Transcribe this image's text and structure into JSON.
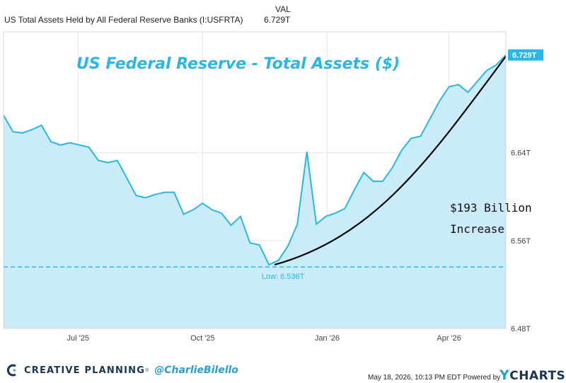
{
  "header": {
    "series_name": "US Total Assets Held by All Federal Reserve Banks (I:USFRTA)",
    "val_label": "VAL",
    "val_value": "6.729T"
  },
  "colors": {
    "line": "#29b6e8",
    "fill": "#c9ecf8",
    "title": "#29b6e8",
    "grid": "#e6e6e6",
    "trend": "#000000",
    "brand": "#1b3652"
  },
  "chart_data": {
    "type": "area",
    "title": "US Federal Reserve - Total Assets ($)",
    "y_unit": "trillions USD",
    "ylim": [
      6.48,
      6.75
    ],
    "y_ticks": [
      {
        "value": 6.48,
        "label": "6.48T"
      },
      {
        "value": 6.56,
        "label": "6.56T"
      },
      {
        "value": 6.64,
        "label": "6.64T"
      }
    ],
    "x_range": [
      "2025-05-07",
      "2026-05-13"
    ],
    "x_ticks": [
      {
        "date": "2025-07-01",
        "label": "Jul '25"
      },
      {
        "date": "2025-10-01",
        "label": "Oct '25"
      },
      {
        "date": "2026-01-01",
        "label": "Jan '26"
      },
      {
        "date": "2026-04-01",
        "label": "Apr '26"
      }
    ],
    "grid": true,
    "series": [
      {
        "x": [
          "2025-05-07",
          "2025-05-14",
          "2025-05-21",
          "2025-05-28",
          "2025-06-04",
          "2025-06-11",
          "2025-06-18",
          "2025-06-25",
          "2025-07-02",
          "2025-07-09",
          "2025-07-16",
          "2025-07-23",
          "2025-07-30",
          "2025-08-06",
          "2025-08-13",
          "2025-08-20",
          "2025-08-27",
          "2025-09-03",
          "2025-09-10",
          "2025-09-17",
          "2025-09-24",
          "2025-10-01",
          "2025-10-08",
          "2025-10-15",
          "2025-10-22",
          "2025-10-29",
          "2025-11-05",
          "2025-11-12",
          "2025-11-19",
          "2025-11-26",
          "2025-12-03",
          "2025-12-10",
          "2025-12-17",
          "2025-12-24",
          "2025-12-31",
          "2026-01-07",
          "2026-01-14",
          "2026-01-21",
          "2026-01-28",
          "2026-02-04",
          "2026-02-11",
          "2026-02-18",
          "2026-02-25",
          "2026-03-04",
          "2026-03-11",
          "2026-03-18",
          "2026-03-25",
          "2026-04-01",
          "2026-04-08",
          "2026-04-15",
          "2026-04-22",
          "2026-04-29",
          "2026-05-06",
          "2026-05-13"
        ],
        "values": [
          6.674,
          6.659,
          6.658,
          6.661,
          6.665,
          6.65,
          6.647,
          6.649,
          6.647,
          6.645,
          6.633,
          6.631,
          6.633,
          6.617,
          6.601,
          6.599,
          6.602,
          6.604,
          6.604,
          6.584,
          6.588,
          6.594,
          6.588,
          6.585,
          6.574,
          6.582,
          6.558,
          6.556,
          6.538,
          6.542,
          6.555,
          6.575,
          6.641,
          6.575,
          6.582,
          6.585,
          6.589,
          6.606,
          6.622,
          6.614,
          6.614,
          6.626,
          6.642,
          6.653,
          6.655,
          6.671,
          6.687,
          6.7,
          6.702,
          6.695,
          6.705,
          6.715,
          6.72,
          6.729
        ]
      }
    ],
    "annotations": {
      "low_label": "Low: 6.536T",
      "low_value": 6.536,
      "last_label": "6.729T",
      "last_value": 6.729,
      "increase_line1": "$193 Billion",
      "increase_line2": "Increase"
    }
  },
  "footer": {
    "brand": "CREATIVE PLANNING",
    "brand_mark": "®",
    "handle": "@CharlieBilello",
    "date_text": "May 18, 2026, 10:13 PM EDT Powered by",
    "ycharts_y": "Y",
    "ycharts_rest": "CHARTS"
  }
}
